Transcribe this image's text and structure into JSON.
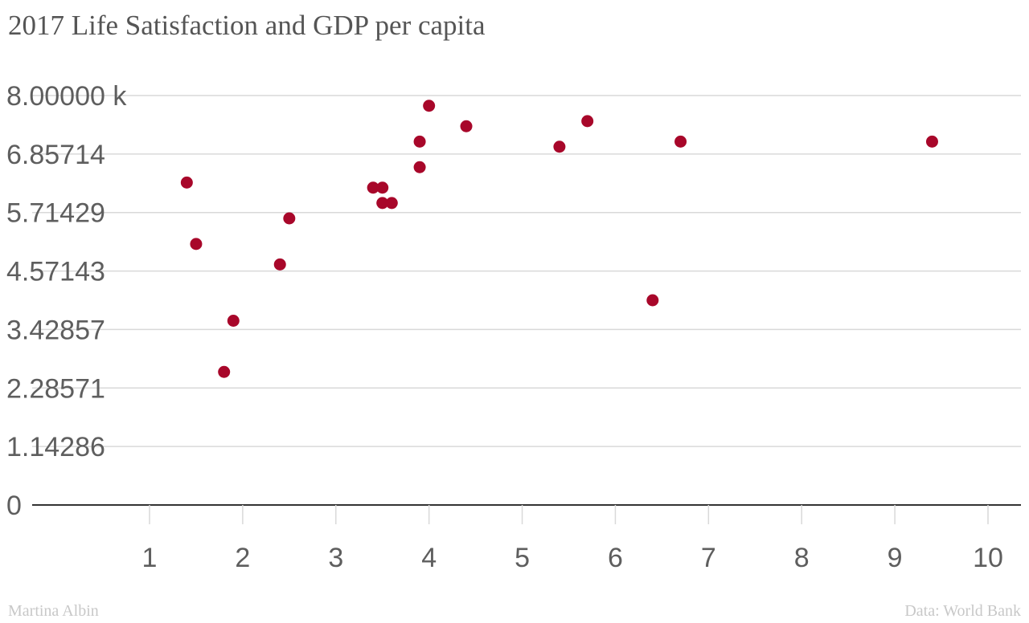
{
  "title": "2017 Life Satisfaction and GDP per capita",
  "footer": {
    "author": "Martina Albin",
    "source": "Data: World Bank"
  },
  "colors": {
    "point": "#a8072a",
    "grid": "#d9d9d9",
    "axis": "#333333",
    "text": "#5e5e5e"
  },
  "chart_data": {
    "type": "scatter",
    "title": "2017 Life Satisfaction and GDP per capita",
    "xlabel": "",
    "ylabel": "",
    "xlim": [
      0.5,
      10.35
    ],
    "ylim": [
      0,
      8
    ],
    "x_ticks": [
      1,
      2,
      3,
      4,
      5,
      6,
      7,
      8,
      9,
      10
    ],
    "x_tick_labels": [
      "1",
      "2",
      "3",
      "4",
      "5",
      "6",
      "7",
      "8",
      "9",
      "10"
    ],
    "y_ticks": [
      0,
      1.142857,
      2.285714,
      3.428571,
      4.571429,
      5.714286,
      6.857143,
      8
    ],
    "y_tick_labels": [
      "0",
      "1.14286",
      "2.28571",
      "3.42857",
      "4.57143",
      "5.71429",
      "6.85714",
      "8.00000 k"
    ],
    "grid": true,
    "legend": "none",
    "points": [
      {
        "x": 1.4,
        "y": 6.3
      },
      {
        "x": 1.5,
        "y": 5.1
      },
      {
        "x": 1.8,
        "y": 2.6
      },
      {
        "x": 1.9,
        "y": 3.6
      },
      {
        "x": 2.4,
        "y": 4.7
      },
      {
        "x": 2.5,
        "y": 5.6
      },
      {
        "x": 3.4,
        "y": 6.2
      },
      {
        "x": 3.5,
        "y": 6.2
      },
      {
        "x": 3.5,
        "y": 5.9
      },
      {
        "x": 3.6,
        "y": 5.9
      },
      {
        "x": 3.9,
        "y": 6.6
      },
      {
        "x": 3.9,
        "y": 7.1
      },
      {
        "x": 4.0,
        "y": 7.8
      },
      {
        "x": 4.4,
        "y": 7.4
      },
      {
        "x": 5.4,
        "y": 7.0
      },
      {
        "x": 5.7,
        "y": 7.5
      },
      {
        "x": 6.4,
        "y": 4.0
      },
      {
        "x": 6.7,
        "y": 7.1
      },
      {
        "x": 9.4,
        "y": 7.1
      }
    ]
  }
}
